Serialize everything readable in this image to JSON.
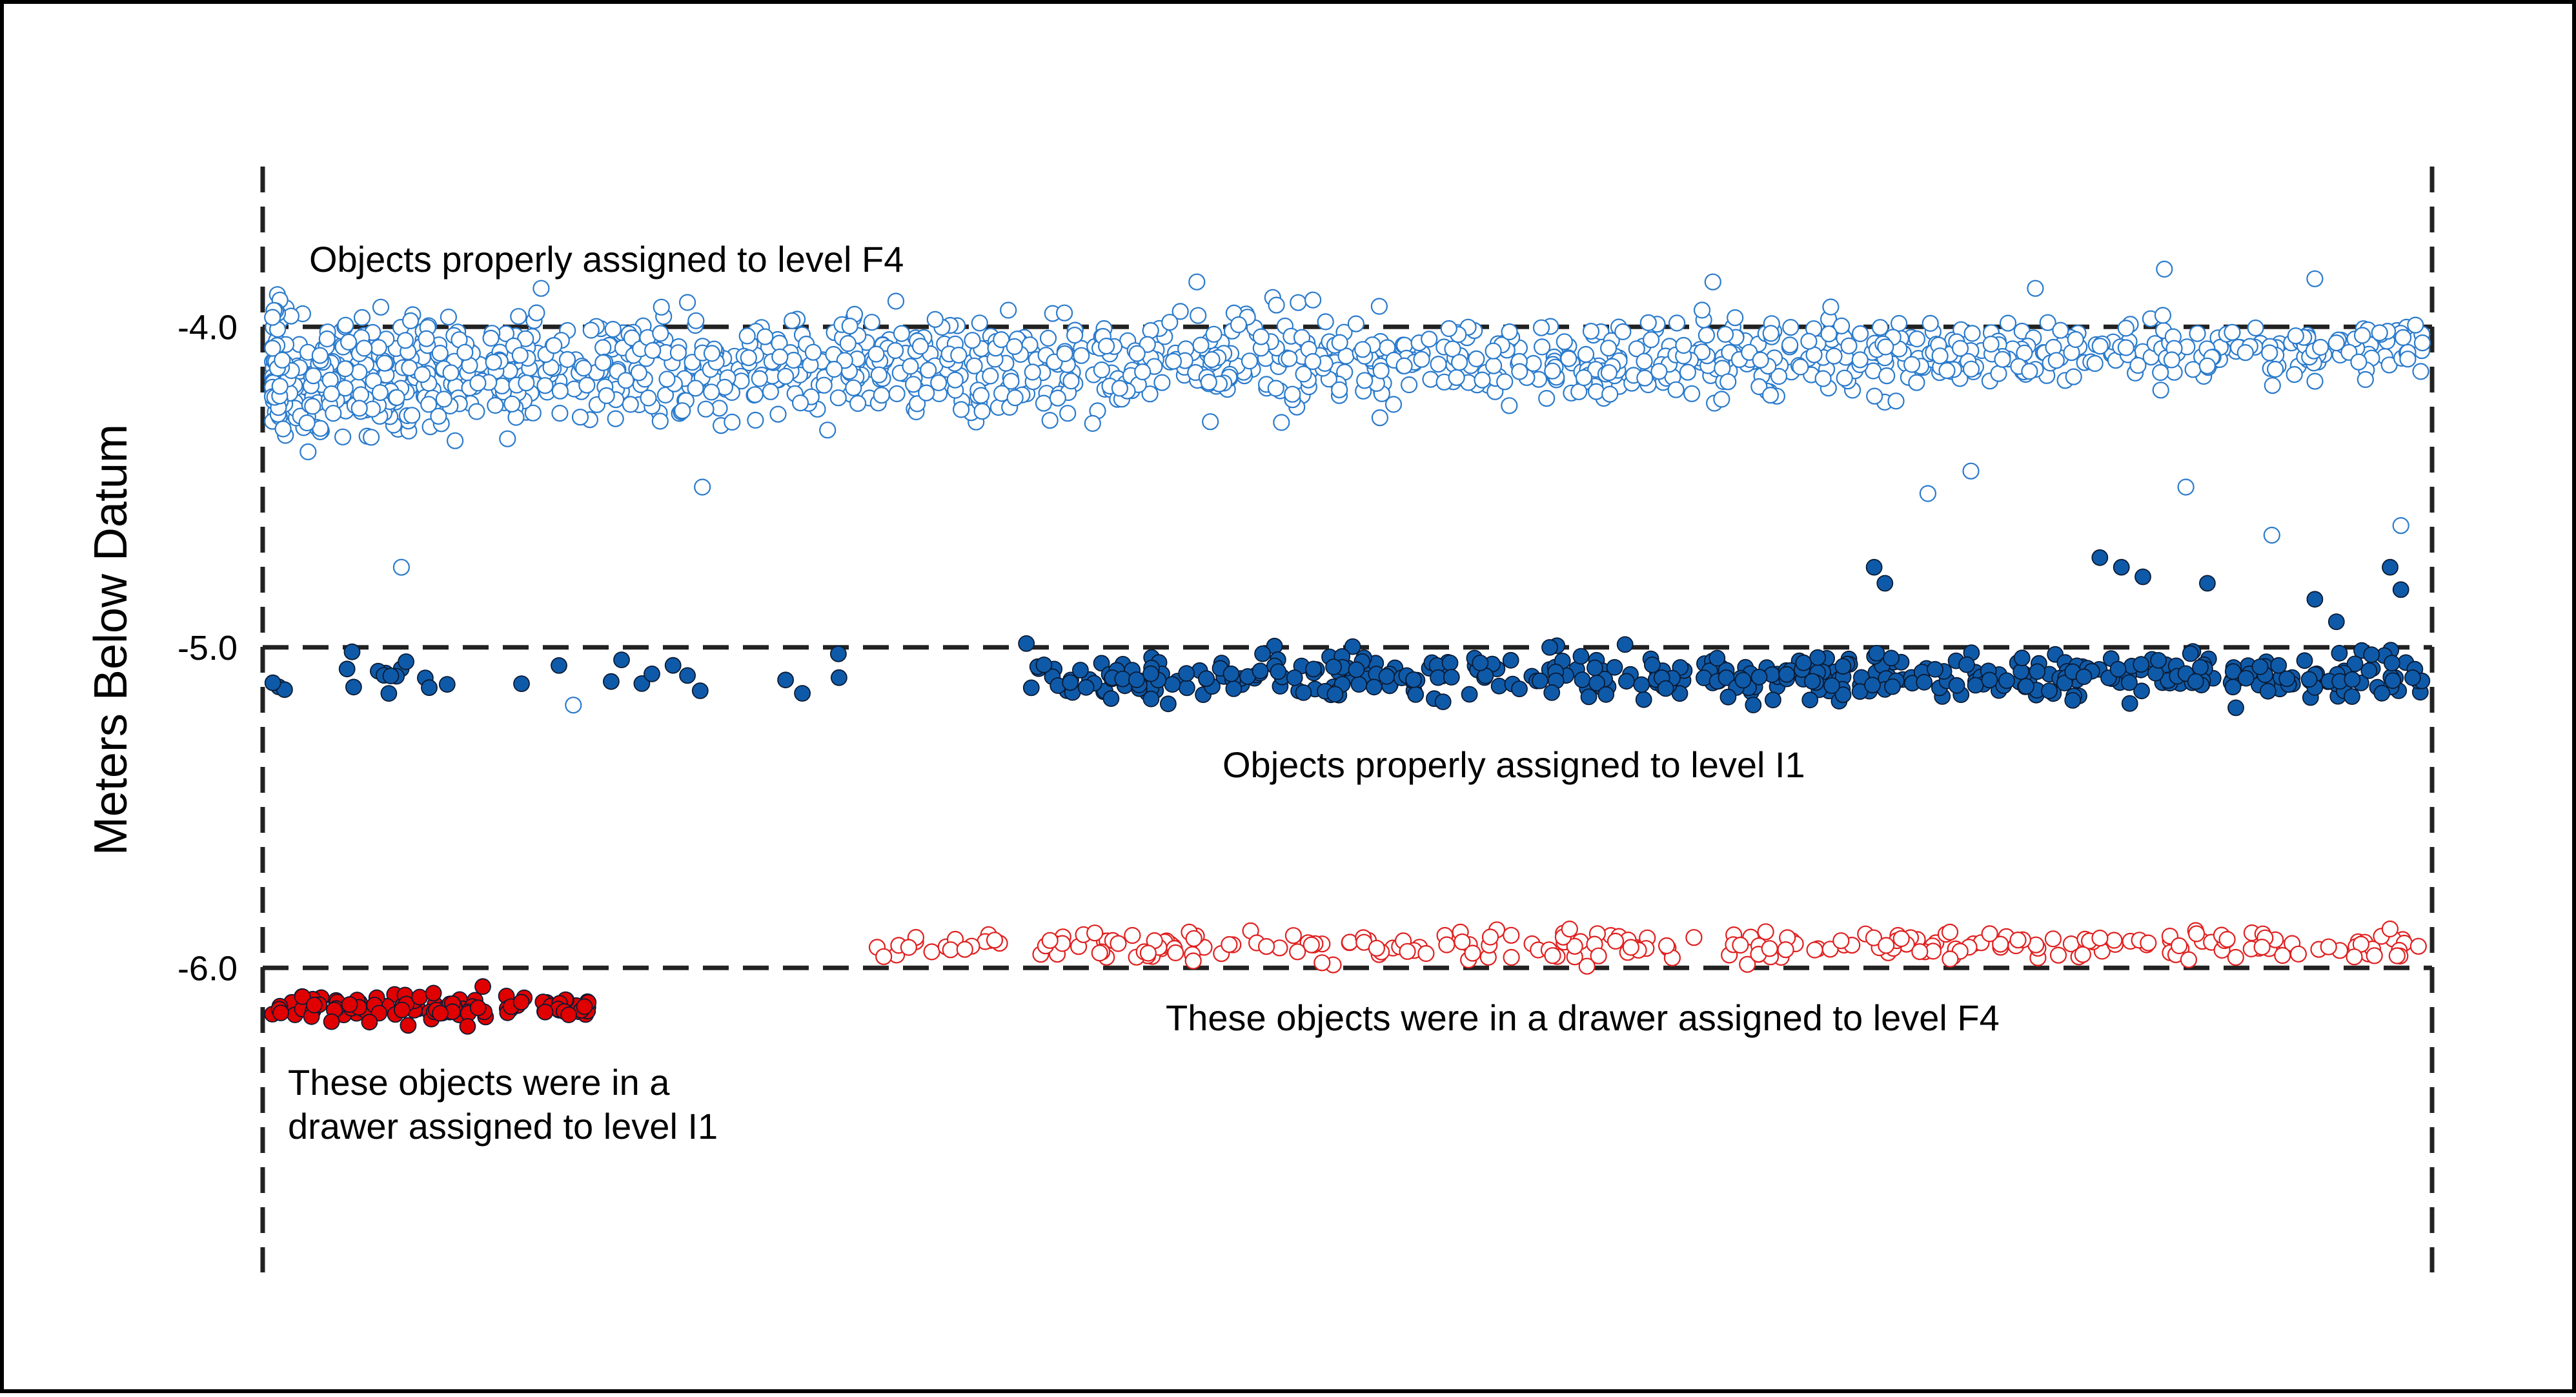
{
  "chart_data": {
    "type": "scatter",
    "ylabel": "Meters Below Datum",
    "ylim": [
      -6.95,
      -3.5
    ],
    "yticks": [
      {
        "value": -4.0,
        "label": "-4.0"
      },
      {
        "value": -5.0,
        "label": "-5.0"
      },
      {
        "value": -6.0,
        "label": "-6.0"
      }
    ],
    "reference_lines_y": [
      -4.0,
      -5.0,
      -6.0
    ],
    "x_axis_shown": false,
    "grid": false,
    "series": [
      {
        "key": "f4_correct",
        "style": "open",
        "color": "#2b7bcc",
        "x_range": [
          0,
          1
        ],
        "y_center": -4.15,
        "y_spread": 0.32,
        "count": 1350,
        "outliers": [
          [
            0.125,
            -3.88
          ],
          [
            0.29,
            -3.92
          ],
          [
            0.43,
            -3.86
          ],
          [
            0.67,
            -3.86
          ],
          [
            0.82,
            -3.88
          ],
          [
            0.88,
            -3.82
          ],
          [
            0.95,
            -3.85
          ],
          [
            0.96,
            -4.05
          ],
          [
            0.2,
            -4.5
          ],
          [
            0.06,
            -4.75
          ],
          [
            0.77,
            -4.52
          ],
          [
            0.79,
            -4.45
          ],
          [
            0.93,
            -4.65
          ],
          [
            0.89,
            -4.5
          ],
          [
            0.99,
            -4.62
          ],
          [
            1.0,
            -4.05
          ],
          [
            0.14,
            -5.18
          ]
        ]
      },
      {
        "key": "i1_correct",
        "style": "filled",
        "color": "#0f5aa8",
        "x_range": [
          0,
          1
        ],
        "y_center": -5.09,
        "y_spread": 0.13,
        "count": 470,
        "outliers": [
          [
            0.745,
            -4.75
          ],
          [
            0.75,
            -4.8
          ],
          [
            0.85,
            -4.72
          ],
          [
            0.86,
            -4.75
          ],
          [
            0.87,
            -4.78
          ],
          [
            0.9,
            -4.8
          ],
          [
            0.95,
            -4.85
          ],
          [
            0.96,
            -4.92
          ],
          [
            0.99,
            -4.82
          ],
          [
            0.985,
            -4.75
          ]
        ]
      },
      {
        "key": "i1_drawer",
        "style": "filled",
        "color": "#e00000",
        "x_range": [
          0,
          0.15
        ],
        "y_center": -6.12,
        "y_spread": 0.07,
        "count": 110,
        "outliers": []
      },
      {
        "key": "f4_drawer",
        "style": "open",
        "color": "#e02020",
        "x_range": [
          0.28,
          1
        ],
        "y_center": -5.93,
        "y_spread": 0.08,
        "count": 260,
        "outliers": []
      }
    ],
    "annotations": [
      {
        "key": "f4",
        "lines": [
          "Objects properly assigned to level F4"
        ]
      },
      {
        "key": "i1",
        "lines": [
          "Objects properly assigned to level I1"
        ]
      },
      {
        "key": "drawer_f4",
        "lines": [
          "These objects were in a drawer assigned to level F4"
        ]
      },
      {
        "key": "drawer_i1",
        "lines": [
          "These objects were in a",
          "drawer assigned to level I1"
        ]
      }
    ]
  }
}
